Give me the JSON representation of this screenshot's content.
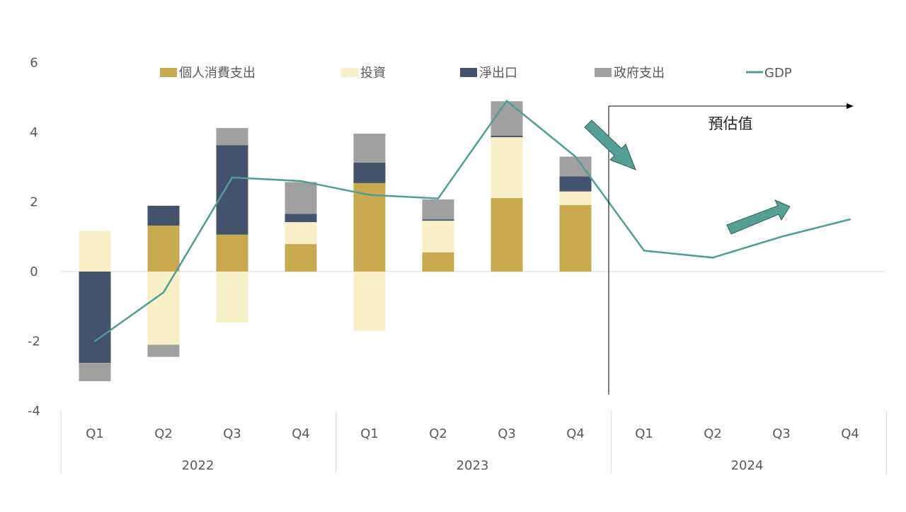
{
  "chart_data": {
    "type": "bar",
    "subtype": "stacked bar with line",
    "ylim": [
      -4,
      6
    ],
    "yticks": [
      -4,
      -2,
      0,
      2,
      4,
      6
    ],
    "categories": [
      "Q1",
      "Q2",
      "Q3",
      "Q4",
      "Q1",
      "Q2",
      "Q3",
      "Q4",
      "Q1",
      "Q2",
      "Q3",
      "Q4"
    ],
    "years": [
      {
        "label": "2022",
        "span": 4
      },
      {
        "label": "2023",
        "span": 4
      },
      {
        "label": "2024",
        "span": 4
      }
    ],
    "series": [
      {
        "name": "個人消費支出",
        "color": "#C9A94F",
        "values": [
          0,
          1.32,
          1.06,
          0.79,
          2.54,
          0.55,
          2.11,
          1.91,
          null,
          null,
          null,
          null
        ]
      },
      {
        "name": "投資",
        "color": "#F8EFC6",
        "values": [
          1.16,
          -2.1,
          -1.46,
          0.63,
          -1.7,
          0.91,
          1.75,
          0.39,
          null,
          null,
          null,
          null
        ]
      },
      {
        "name": "淨出口",
        "color": "#43536B",
        "values": [
          -2.62,
          0.57,
          2.57,
          0.24,
          0.59,
          0.04,
          0.04,
          0.43,
          null,
          null,
          null,
          null
        ]
      },
      {
        "name": "政府支出",
        "color": "#A0A0A0",
        "values": [
          -0.53,
          -0.35,
          0.49,
          0.91,
          0.83,
          0.57,
          0.99,
          0.57,
          null,
          null,
          null,
          null
        ]
      }
    ],
    "line": {
      "name": "GDP",
      "color": "#4E9E94",
      "values": [
        -2.0,
        -0.6,
        2.7,
        2.6,
        2.2,
        2.1,
        4.9,
        3.3,
        0.6,
        0.4,
        1.0,
        1.5
      ]
    },
    "annotation": {
      "label": "預估值",
      "start_category": 9
    },
    "legend_placement": "top"
  }
}
